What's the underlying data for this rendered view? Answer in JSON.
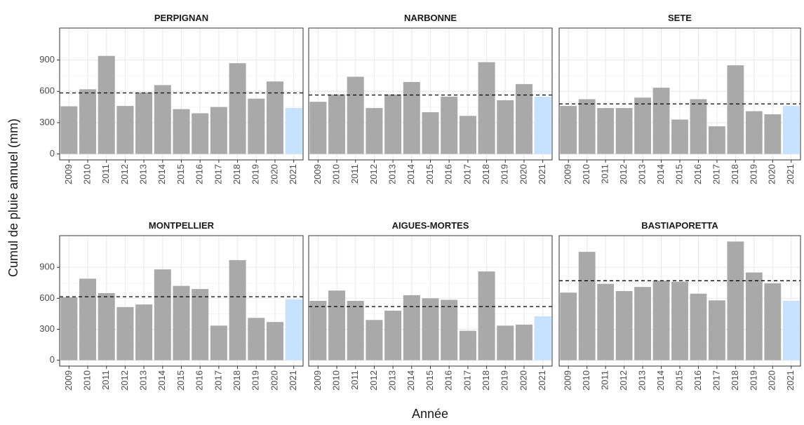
{
  "chart_data": {
    "type": "bar",
    "ylabel": "Cumul de pluie annuel (mm)",
    "xlabel": "Année",
    "categories": [
      "2009",
      "2010",
      "2011",
      "2012",
      "2013",
      "2014",
      "2015",
      "2016",
      "2017",
      "2018",
      "2019",
      "2020",
      "2021"
    ],
    "colors": [
      "#a9a9a9",
      "#a9a9a9",
      "#a9a9a9",
      "#a9a9a9",
      "#a9a9a9",
      "#a9a9a9",
      "#a9a9a9",
      "#a9a9a9",
      "#a9a9a9",
      "#a9a9a9",
      "#a9a9a9",
      "#a9a9a9",
      "#c6e2ff"
    ],
    "ylim": [
      -57,
      1207
    ],
    "yticks": [
      0,
      300,
      600,
      900
    ],
    "grid": true,
    "facets": [
      {
        "title": "PERPIGNAN",
        "values": [
          457,
          620,
          940,
          460,
          590,
          660,
          430,
          390,
          450,
          870,
          530,
          695,
          440
        ],
        "mean": 585
      },
      {
        "title": "NARBONNE",
        "values": [
          500,
          570,
          740,
          440,
          570,
          690,
          400,
          550,
          365,
          880,
          515,
          670,
          550
        ],
        "mean": 565
      },
      {
        "title": "SETE",
        "values": [
          460,
          525,
          440,
          440,
          540,
          635,
          330,
          525,
          265,
          850,
          410,
          380,
          460
        ],
        "mean": 480
      },
      {
        "title": "MONTPELLIER",
        "values": [
          610,
          790,
          650,
          515,
          540,
          880,
          720,
          690,
          335,
          970,
          410,
          370,
          590
        ],
        "mean": 615
      },
      {
        "title": "AIGUES-MORTES",
        "values": [
          575,
          675,
          575,
          390,
          480,
          630,
          600,
          585,
          285,
          860,
          335,
          345,
          425
        ],
        "mean": 520
      },
      {
        "title": "BASTIAPORETTA",
        "values": [
          655,
          1050,
          740,
          670,
          710,
          770,
          760,
          645,
          580,
          1150,
          850,
          745,
          575
        ],
        "mean": 770
      }
    ]
  }
}
